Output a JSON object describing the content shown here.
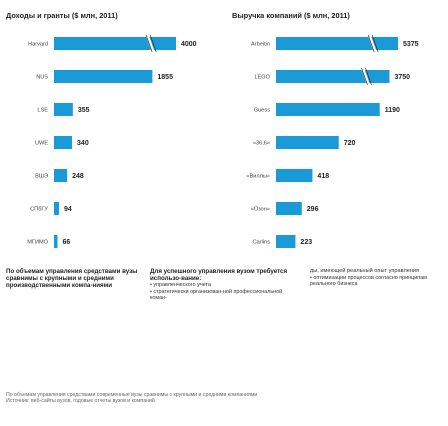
{
  "left_title": "Доходы и гранты ($ млн, 2011)",
  "right_title": "Выручка компаний ($ млн, 2011)",
  "colors": {
    "bar": "#1a9ad6",
    "break_line": "#333333"
  },
  "chart_data": [
    {
      "type": "bar",
      "orientation": "horizontal",
      "title": "Доходы и гранты ($ млн, 2011)",
      "categories": [
        "Harvard",
        "NUS",
        "LSE",
        "UWE",
        "ВШЭ",
        "СПбГУ",
        "МГИМО"
      ],
      "values": [
        4000,
        1855,
        355,
        340,
        248,
        94,
        66
      ],
      "axis_break_on": [
        "Harvard"
      ],
      "grid": false
    },
    {
      "type": "bar",
      "orientation": "horizontal",
      "title": "Выручка компаний ($ млн, 2011)",
      "categories": [
        "Arbeitin",
        "LEGO",
        "Guess",
        "«36,6»",
        "«Виллы»",
        "«Озон»",
        "Carlins"
      ],
      "values": [
        5375,
        3750,
        1190,
        720,
        418,
        296,
        223
      ],
      "axis_break_on": [
        "Arbeitin",
        "LEGO"
      ],
      "grid": false
    }
  ],
  "notes": {
    "note1": "По объемам управления средствами вузы сравнимы с крупными и средними производственными компа-ниями",
    "note2_head": "Для успешного управления вузом требуется использо-вание:",
    "note2_items": [
      "• управленческого учета",
      "• стратегически организован-ной профессиональной коман-"
    ],
    "note3": "ды, имеющей реальный опыт управления",
    "note3_items": [
      "• оптимизации процессов согласно принципам реального бизнеса"
    ]
  },
  "footer": {
    "text": "По объемам управления средствами современные вузы сравнимы с крупными и средними компаниями",
    "source": "Источник: веб-сайты вузов, годовые отчеты вузов и компаний"
  }
}
